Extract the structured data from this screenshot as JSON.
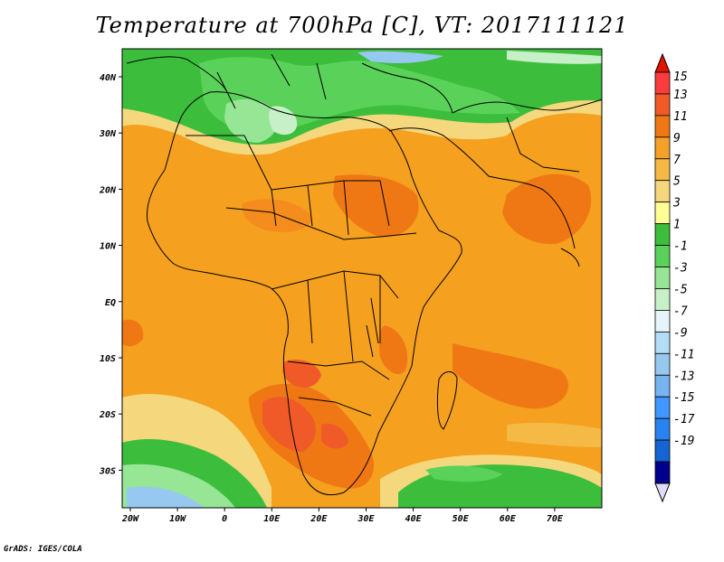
{
  "title": "Temperature at 700hPa [C], VT: 2017111121",
  "credit": "GrADS: IGES/COLA",
  "map": {
    "lon_labels": [
      "20W",
      "10W",
      "0",
      "10E",
      "20E",
      "30E",
      "40E",
      "50E",
      "60E",
      "70E"
    ],
    "lat_labels": [
      "40N",
      "30N",
      "20N",
      "10N",
      "EQ",
      "10S",
      "20S",
      "30S"
    ]
  },
  "colorbar": {
    "labels": [
      "15",
      "13",
      "11",
      "9",
      "7",
      "5",
      "3",
      "1",
      "-1",
      "-3",
      "-5",
      "-7",
      "-9",
      "-11",
      "-13",
      "-15",
      "-17",
      "-19"
    ],
    "colors": [
      "#fa3c3c",
      "#f05a28",
      "#f07814",
      "#f5a028",
      "#f5b946",
      "#f5d77d",
      "#ffff96",
      "#3cbe3c",
      "#5ad25a",
      "#96e696",
      "#c8f0c8",
      "#e6f5fa",
      "#b4dcf5",
      "#96c8f0",
      "#78b4f0",
      "#4196ff",
      "#2882f0",
      "#1464d2",
      "#00008c"
    ],
    "top_arrow_color": "#e11400",
    "bottom_arrow_color": "#e1dcf5"
  }
}
